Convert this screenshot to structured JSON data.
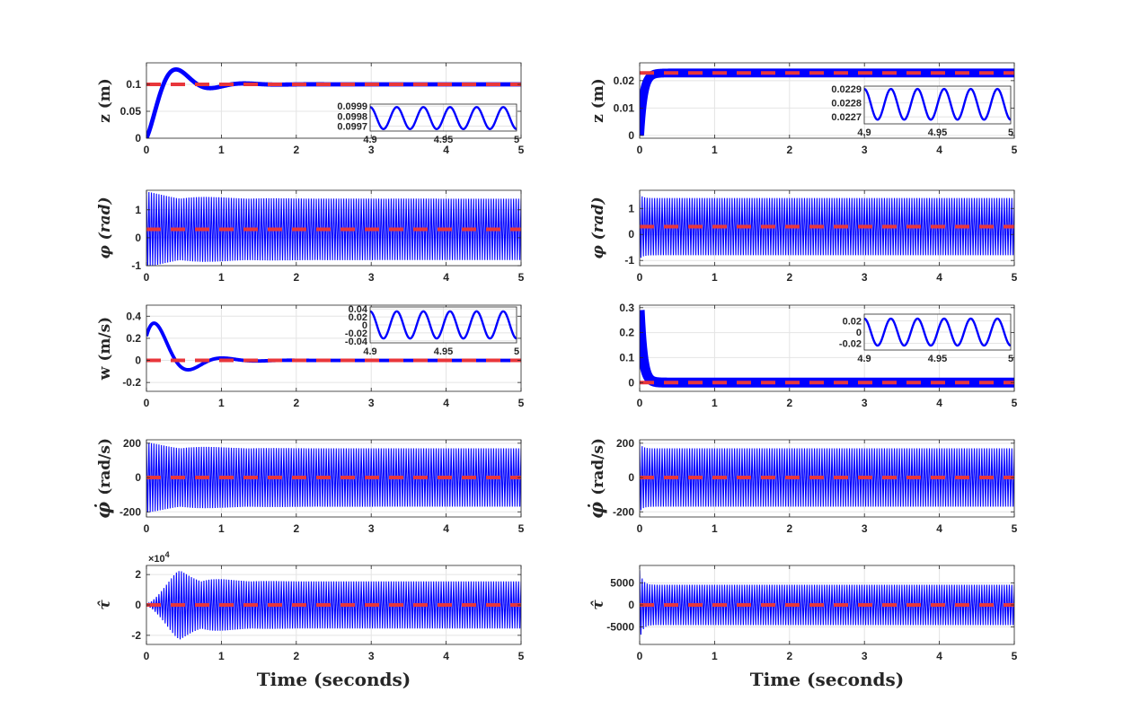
{
  "chart_data": [
    {
      "id": "L1",
      "type": "line",
      "ylabel": "z (m)",
      "ylim": [
        0,
        0.14
      ],
      "yticks": [
        0,
        0.05,
        0.1
      ],
      "ytick_labels": [
        "0",
        "0.05",
        "0.1"
      ],
      "xlim": [
        0,
        5
      ],
      "xticks": [
        0,
        1,
        2,
        3,
        4,
        5
      ],
      "xtick_labels": [
        "0",
        "1",
        "2",
        "3",
        "4",
        "5"
      ],
      "xlabel": "",
      "signal": {
        "kind": "damped",
        "base": 0.1,
        "amp": -0.1,
        "tau": 0.33,
        "f": 1.1,
        "phase": 0,
        "start": 0,
        "band": 0.004
      },
      "reference": 0.1,
      "series": [
        {
          "name": "actual",
          "color": "#0000ff"
        },
        {
          "name": "reference",
          "color": "#e8363b"
        }
      ],
      "inset": {
        "xlim": [
          4.9,
          5
        ],
        "ylim": [
          0.09965,
          0.09992
        ],
        "yticks": [
          0.0997,
          0.0998,
          0.0999
        ],
        "ytick_labels": [
          "0.0997",
          "0.0998",
          "0.0999"
        ],
        "xticks": [
          4.9,
          4.95,
          5
        ],
        "xtick_labels": [
          "4.9",
          "4.95",
          "5"
        ],
        "mid": 0.09978,
        "amp": 0.00011,
        "cycles": 5.5
      }
    },
    {
      "id": "R1",
      "type": "line",
      "ylabel": "z (m)",
      "ylim": [
        -0.001,
        0.0265
      ],
      "yticks": [
        0,
        0.01,
        0.02
      ],
      "ytick_labels": [
        "0",
        "0.01",
        "0.02"
      ],
      "xlim": [
        0,
        5
      ],
      "xticks": [
        0,
        1,
        2,
        3,
        4,
        5
      ],
      "xtick_labels": [
        "0",
        "1",
        "2",
        "3",
        "4",
        "5"
      ],
      "xlabel": "",
      "signal": {
        "kind": "rise",
        "base": 0.0228,
        "tau": 0.05,
        "start": 0,
        "band": 0.0016
      },
      "reference": 0.0228,
      "series": [
        {
          "name": "actual",
          "color": "#0000ff"
        },
        {
          "name": "reference",
          "color": "#e8363b"
        }
      ],
      "inset": {
        "xlim": [
          4.9,
          5
        ],
        "ylim": [
          0.02265,
          0.02292
        ],
        "yticks": [
          0.0227,
          0.0228,
          0.0229
        ],
        "ytick_labels": [
          "0.0227",
          "0.0228",
          "0.0229"
        ],
        "xticks": [
          4.9,
          4.95,
          5
        ],
        "xtick_labels": [
          "4.9",
          "4.95",
          "5"
        ],
        "mid": 0.02279,
        "amp": 0.00011,
        "cycles": 5.5
      }
    },
    {
      "id": "L2",
      "type": "line",
      "ylabel": "φ (rad)",
      "ylim": [
        -1,
        1.7
      ],
      "yticks": [
        -1,
        0,
        1
      ],
      "ytick_labels": [
        "-1",
        "0",
        "1"
      ],
      "xlim": [
        0,
        5
      ],
      "xticks": [
        0,
        1,
        2,
        3,
        4,
        5
      ],
      "xtick_labels": [
        "0",
        "1",
        "2",
        "3",
        "4",
        "5"
      ],
      "xlabel": "",
      "signal": {
        "kind": "osc",
        "center": 0.3,
        "amp": 1.1,
        "extra": 0.25,
        "tau": 0.6,
        "freq": 30
      },
      "reference": 0.3,
      "series": [
        {
          "name": "actual",
          "color": "#0000ff"
        },
        {
          "name": "reference",
          "color": "#e8363b"
        }
      ]
    },
    {
      "id": "R2",
      "type": "line",
      "ylabel": "φ (rad)",
      "ylim": [
        -1.2,
        1.7
      ],
      "yticks": [
        -1,
        0,
        1
      ],
      "ytick_labels": [
        "-1",
        "0",
        "1"
      ],
      "xlim": [
        0,
        5
      ],
      "xticks": [
        0,
        1,
        2,
        3,
        4,
        5
      ],
      "xtick_labels": [
        "0",
        "1",
        "2",
        "3",
        "4",
        "5"
      ],
      "xlabel": "",
      "signal": {
        "kind": "osc",
        "center": 0.3,
        "amp": 1.1,
        "extra": 0.15,
        "tau": 0.04,
        "freq": 30
      },
      "reference": 0.3,
      "series": [
        {
          "name": "actual",
          "color": "#0000ff"
        },
        {
          "name": "reference",
          "color": "#e8363b"
        }
      ]
    },
    {
      "id": "L3",
      "type": "line",
      "ylabel": "w (m/s)",
      "ylim": [
        -0.28,
        0.5
      ],
      "yticks": [
        -0.2,
        0,
        0.2,
        0.4
      ],
      "ytick_labels": [
        "-0.2",
        "0",
        "0.2",
        "0.4"
      ],
      "xlim": [
        0,
        5
      ],
      "xticks": [
        0,
        1,
        2,
        3,
        4,
        5
      ],
      "xtick_labels": [
        "0",
        "1",
        "2",
        "3",
        "4",
        "5"
      ],
      "xlabel": "",
      "signal": {
        "kind": "dampedsin",
        "base": 0.0,
        "amp": 0.48,
        "tau": 0.33,
        "f": 1.1,
        "phase": 0.5,
        "start": 0,
        "band": 0.016
      },
      "reference": 0,
      "series": [
        {
          "name": "actual",
          "color": "#0000ff"
        },
        {
          "name": "reference",
          "color": "#e8363b"
        }
      ],
      "inset": {
        "xlim": [
          4.9,
          5
        ],
        "ylim": [
          -0.045,
          0.045
        ],
        "yticks": [
          -0.04,
          -0.02,
          0,
          0.02,
          0.04
        ],
        "ytick_labels": [
          "-0.04",
          "-0.02",
          "0",
          "0.02",
          "0.04"
        ],
        "xticks": [
          4.9,
          4.95,
          5
        ],
        "xtick_labels": [
          "4.9",
          "4.95",
          "5"
        ],
        "mid": 0,
        "amp": 0.034,
        "cycles": 5.5
      }
    },
    {
      "id": "R3",
      "type": "line",
      "ylabel": "",
      "ylim": [
        -0.035,
        0.31
      ],
      "yticks": [
        0,
        0.1,
        0.2,
        0.3
      ],
      "ytick_labels": [
        "0",
        "0.1",
        "0.2",
        "0.3"
      ],
      "xlim": [
        0,
        5
      ],
      "xticks": [
        0,
        1,
        2,
        3,
        4,
        5
      ],
      "xtick_labels": [
        "0",
        "1",
        "2",
        "3",
        "4",
        "5"
      ],
      "xlabel": "",
      "signal": {
        "kind": "decay",
        "base": 0.0,
        "amp": 0.29,
        "tau": 0.045,
        "start": 0,
        "band": 0.02
      },
      "reference": 0,
      "series": [
        {
          "name": "actual",
          "color": "#0000ff"
        },
        {
          "name": "reference",
          "color": "#e8363b"
        }
      ],
      "inset": {
        "xlim": [
          4.9,
          5
        ],
        "ylim": [
          -0.032,
          0.032
        ],
        "yticks": [
          -0.02,
          0,
          0.02
        ],
        "ytick_labels": [
          "-0.02",
          "0",
          "0.02"
        ],
        "xticks": [
          4.9,
          4.95,
          5
        ],
        "xtick_labels": [
          "4.9",
          "4.95",
          "5"
        ],
        "mid": 0,
        "amp": 0.024,
        "cycles": 5.5
      }
    },
    {
      "id": "L4",
      "type": "line",
      "ylabel": "(rad/s)",
      "ylabel_symbol": "φ̇",
      "ylim": [
        -230,
        220
      ],
      "yticks": [
        -200,
        0,
        200
      ],
      "ytick_labels": [
        "-200",
        "0",
        "200"
      ],
      "xlim": [
        0,
        5
      ],
      "xticks": [
        0,
        1,
        2,
        3,
        4,
        5
      ],
      "xtick_labels": [
        "0",
        "1",
        "2",
        "3",
        "4",
        "5"
      ],
      "xlabel": "",
      "signal": {
        "kind": "osc",
        "center": 0,
        "amp": 170,
        "extra": 35,
        "tau": 0.6,
        "freq": 30
      },
      "reference": 0,
      "series": [
        {
          "name": "actual",
          "color": "#0000ff"
        },
        {
          "name": "reference",
          "color": "#e8363b"
        }
      ]
    },
    {
      "id": "R4",
      "type": "line",
      "ylabel": "(rad/s)",
      "ylabel_symbol": "φ̇",
      "ylim": [
        -230,
        220
      ],
      "yticks": [
        -200,
        0,
        200
      ],
      "ytick_labels": [
        "-200",
        "0",
        "200"
      ],
      "xlim": [
        0,
        5
      ],
      "xticks": [
        0,
        1,
        2,
        3,
        4,
        5
      ],
      "xtick_labels": [
        "0",
        "1",
        "2",
        "3",
        "4",
        "5"
      ],
      "xlabel": "",
      "signal": {
        "kind": "osc",
        "center": 0,
        "amp": 170,
        "extra": 30,
        "tau": 0.04,
        "freq": 30
      },
      "reference": 0,
      "series": [
        {
          "name": "actual",
          "color": "#0000ff"
        },
        {
          "name": "reference",
          "color": "#e8363b"
        }
      ]
    },
    {
      "id": "L5",
      "type": "line",
      "ylabel": "τ̂",
      "ylim": [
        -26000,
        26000
      ],
      "yticks": [
        -20000,
        0,
        20000
      ],
      "ytick_labels": [
        "-2",
        "0",
        "2"
      ],
      "exponent_label": "×10",
      "exponent_power": "4",
      "xlim": [
        0,
        5
      ],
      "xticks": [
        0,
        1,
        2,
        3,
        4,
        5
      ],
      "xtick_labels": [
        "0",
        "1",
        "2",
        "3",
        "4",
        "5"
      ],
      "xlabel": "Time (seconds)",
      "signal": {
        "kind": "tau",
        "center": 0,
        "amp": 15500,
        "extra": 8500,
        "tau": 0.35,
        "freq": 30,
        "peak": 4
      },
      "reference": 0,
      "series": [
        {
          "name": "actual",
          "color": "#0000ff"
        },
        {
          "name": "reference",
          "color": "#e8363b"
        }
      ]
    },
    {
      "id": "R5",
      "type": "line",
      "ylabel": "τ̂",
      "ylim": [
        -9000,
        9000
      ],
      "yticks": [
        -5000,
        0,
        5000
      ],
      "ytick_labels": [
        "-5000",
        "0",
        "5000"
      ],
      "xlim": [
        0,
        5
      ],
      "xticks": [
        0,
        1,
        2,
        3,
        4,
        5
      ],
      "xtick_labels": [
        "0",
        "1",
        "2",
        "3",
        "4",
        "5"
      ],
      "xlabel": "Time (seconds)",
      "signal": {
        "kind": "osc",
        "center": 0,
        "amp": 4600,
        "extra": 3300,
        "tau": 0.04,
        "freq": 30
      },
      "reference": 0,
      "series": [
        {
          "name": "actual",
          "color": "#0000ff"
        },
        {
          "name": "reference",
          "color": "#e8363b"
        }
      ]
    }
  ]
}
